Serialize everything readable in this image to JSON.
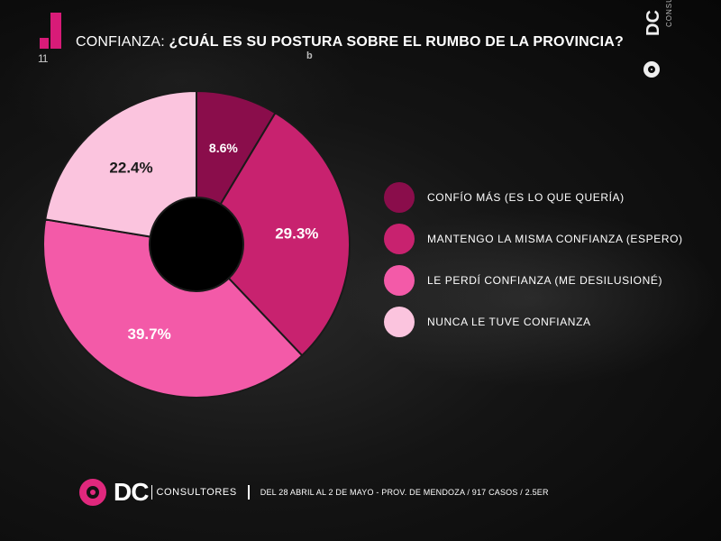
{
  "header": {
    "number": "1",
    "number_sub": "11",
    "lead": "CONFIANZA: ",
    "question": "¿CUÁL ES SU POSTURA SOBRE EL RUMBO DE LA PROVINCIA?",
    "mini_glyph": "b"
  },
  "brand_top": {
    "dc": "DC",
    "cons": "CONSULTORES"
  },
  "chart_data": {
    "type": "pie",
    "title": "",
    "series": [
      {
        "name": "CONFÍO MÁS (ES LO QUE QUERÍA)",
        "value": 8.6,
        "label": "8.6%",
        "color": "#8a0d4b",
        "label_color": "#ffffff"
      },
      {
        "name": "MANTENGO LA MISMA CONFIANZA (ESPERO)",
        "value": 29.3,
        "label": "29.3%",
        "color": "#c8226f",
        "label_color": "#ffffff"
      },
      {
        "name": "LE PERDÍ CONFIANZA (ME DESILUSIONÉ)",
        "value": 39.7,
        "label": "39.7%",
        "color": "#f35aa8",
        "label_color": "#ffffff"
      },
      {
        "name": "NUNCA LE TUVE CONFIANZA",
        "value": 22.4,
        "label": "22.4%",
        "color": "#fbc4de",
        "label_color": "#1a1a1a"
      }
    ],
    "donut": true,
    "legend_position": "right"
  },
  "footer": {
    "logo_dc": "DC",
    "logo_cons": "CONSULTORES",
    "note": "DEL 28 ABRIL AL 2 DE MAYO - PROV. DE MENDOZA / 917 CASOS / 2.5ER"
  }
}
